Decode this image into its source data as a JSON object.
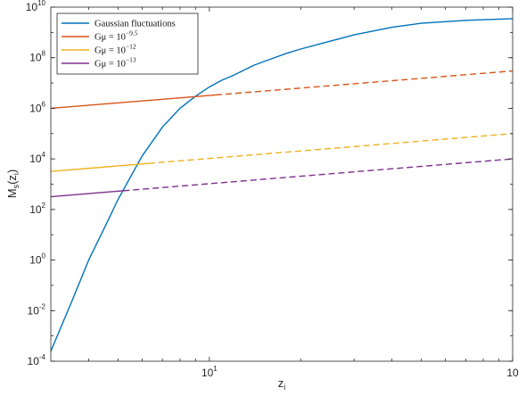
{
  "chart_data": {
    "type": "line",
    "x_scale": "log",
    "y_scale": "log",
    "xlim": [
      3,
      100
    ],
    "ylim": [
      0.0001,
      10000000000
    ],
    "xlabel": {
      "main": "z",
      "sub": "i"
    },
    "ylabel": {
      "main": "M",
      "sub": "s",
      "arg": "(z",
      "arg_sub": "i",
      "close": ")"
    },
    "x_ticks": [
      {
        "value": 10,
        "base": "10",
        "exp": "1"
      },
      {
        "value": 100,
        "base": "10",
        "exp": ""
      }
    ],
    "y_ticks": [
      {
        "value": 0.0001,
        "base": "10",
        "exp": "-4"
      },
      {
        "value": 0.01,
        "base": "10",
        "exp": "-2"
      },
      {
        "value": 1,
        "base": "10",
        "exp": "0"
      },
      {
        "value": 100,
        "base": "10",
        "exp": "2"
      },
      {
        "value": 10000,
        "base": "10",
        "exp": "4"
      },
      {
        "value": 1000000,
        "base": "10",
        "exp": "6"
      },
      {
        "value": 100000000,
        "base": "10",
        "exp": "8"
      },
      {
        "value": 10000000000,
        "base": "10",
        "exp": "10"
      }
    ],
    "legend_position": "top-left",
    "series": [
      {
        "name": "Gaussian fluctuations",
        "legend_main": "Gaussian fluctuations",
        "legend_exp": "",
        "color": "#0072BD",
        "style": "solid",
        "x": [
          3,
          3.5,
          4,
          4.5,
          5,
          6,
          7,
          8,
          9,
          10,
          11,
          12,
          14,
          16,
          18,
          20,
          25,
          30,
          40,
          50,
          70,
          100
        ],
        "y": [
          0.00025,
          0.02,
          1,
          18,
          250,
          13000,
          180000,
          1000000,
          3000000,
          7000000,
          13000000,
          20000000,
          50000000,
          90000000,
          150000000,
          220000000,
          450000000,
          800000000,
          1600000000,
          2300000000,
          3000000000,
          3500000000
        ]
      },
      {
        "name": "Gμ = 10^-9.5",
        "legend_main": "Gμ = 10",
        "legend_exp": "−9.5",
        "color": "#D95319",
        "style": "solid-then-dashed",
        "dash_from_x": 10.5,
        "x": [
          3,
          100
        ],
        "y": [
          1000000,
          30000000
        ]
      },
      {
        "name": "Gμ = 10^-12",
        "legend_main": "Gμ = 10",
        "legend_exp": "−12",
        "color": "#EDB120",
        "style": "solid-then-dashed",
        "dash_from_x": 6.3,
        "x": [
          3,
          100
        ],
        "y": [
          3200,
          100000
        ]
      },
      {
        "name": "Gμ = 10^-13",
        "legend_main": "Gμ = 10",
        "legend_exp": "−13",
        "color": "#7E2F8E",
        "style": "solid-then-dashed",
        "dash_from_x": 5.2,
        "x": [
          3,
          100
        ],
        "y": [
          320,
          10000
        ]
      }
    ]
  }
}
